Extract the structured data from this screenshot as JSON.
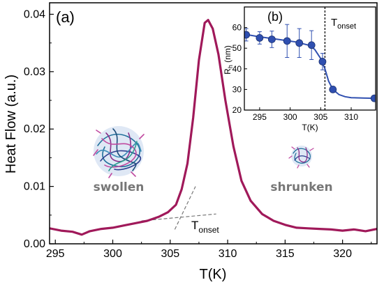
{
  "chart_data": [
    {
      "type": "line",
      "panel_label": "(a)",
      "xlabel": "T(K)",
      "ylabel": "Heat Flow  (a.u.)",
      "xlim": [
        294.5,
        323
      ],
      "ylim": [
        0,
        0.042
      ],
      "xticks": [
        295,
        300,
        305,
        310,
        315,
        320
      ],
      "yticks": [
        0.0,
        0.01,
        0.02,
        0.03,
        0.04
      ],
      "ytick_labels": [
        "0.00",
        "0.01",
        "0.02",
        "0.03",
        "0.04"
      ],
      "series": [
        {
          "color": "#a0195a",
          "x": [
            294.5,
            295.5,
            296.5,
            297.3,
            298,
            299,
            300,
            301,
            302,
            303,
            304,
            304.8,
            305.5,
            306,
            306.5,
            307,
            307.5,
            308,
            308.3,
            308.7,
            309.2,
            309.8,
            310.5,
            311.2,
            312,
            313,
            314,
            315,
            316,
            317,
            318,
            319,
            320,
            321,
            322,
            323
          ],
          "y": [
            0.0027,
            0.0023,
            0.0021,
            0.0016,
            0.0022,
            0.0026,
            0.0028,
            0.0032,
            0.0036,
            0.004,
            0.0047,
            0.0055,
            0.0068,
            0.0095,
            0.014,
            0.022,
            0.032,
            0.0385,
            0.039,
            0.0375,
            0.033,
            0.025,
            0.017,
            0.011,
            0.0075,
            0.0052,
            0.004,
            0.0033,
            0.0028,
            0.0027,
            0.0026,
            0.0025,
            0.0023,
            0.0025,
            0.0022,
            0.0026
          ]
        }
      ],
      "annotations": [
        {
          "text": "swollen",
          "x": 300,
          "y": 0.0085
        },
        {
          "text": "shrunken",
          "x": 316,
          "y": 0.0085
        },
        {
          "text": "T",
          "subscript": "onset",
          "x": 306.2,
          "y": 0.0045
        }
      ],
      "guide_lines": [
        {
          "style": "dashed",
          "x": [
            302.5,
            309
          ],
          "y": [
            0.004,
            0.0052
          ]
        },
        {
          "style": "dashed",
          "x": [
            305.4,
            307.2
          ],
          "y": [
            0.0025,
            0.01
          ]
        }
      ],
      "illustrations": [
        "swollen-polymer-coil",
        "shrunken-polymer-coil"
      ]
    },
    {
      "type": "line+scatter",
      "panel_label": "(b)",
      "xlabel": "T(K)",
      "ylabel": "R",
      "ylabel_sub": "h",
      "ylabel_unit": " (nm)",
      "xlim": [
        292.5,
        314
      ],
      "ylim": [
        20,
        70
      ],
      "xticks": [
        295,
        300,
        305,
        310
      ],
      "yticks": [
        20,
        30,
        40,
        50,
        60
      ],
      "vline": {
        "x": 305.7,
        "label": "T",
        "label_sub": "onset"
      },
      "series": [
        {
          "color": "#2f4fb0",
          "points_x": [
            292.8,
            295,
            297,
            299.5,
            301.5,
            303.5,
            305.3,
            307,
            313.8
          ],
          "points_y": [
            56.5,
            55,
            54.3,
            53.5,
            52.5,
            51.5,
            43.5,
            30,
            25.7
          ],
          "errors": [
            3,
            3,
            4,
            8,
            7,
            7,
            4,
            1,
            1
          ],
          "fit_x": [
            292.5,
            295,
            298,
            301,
            303,
            304,
            305,
            305.7,
            306.3,
            307,
            308,
            309,
            310,
            312,
            314
          ],
          "fit_y": [
            56.8,
            55.5,
            54.3,
            53,
            51.5,
            49.5,
            45,
            40,
            34,
            30,
            27.5,
            26.5,
            26,
            25.8,
            25.7
          ]
        }
      ]
    }
  ]
}
